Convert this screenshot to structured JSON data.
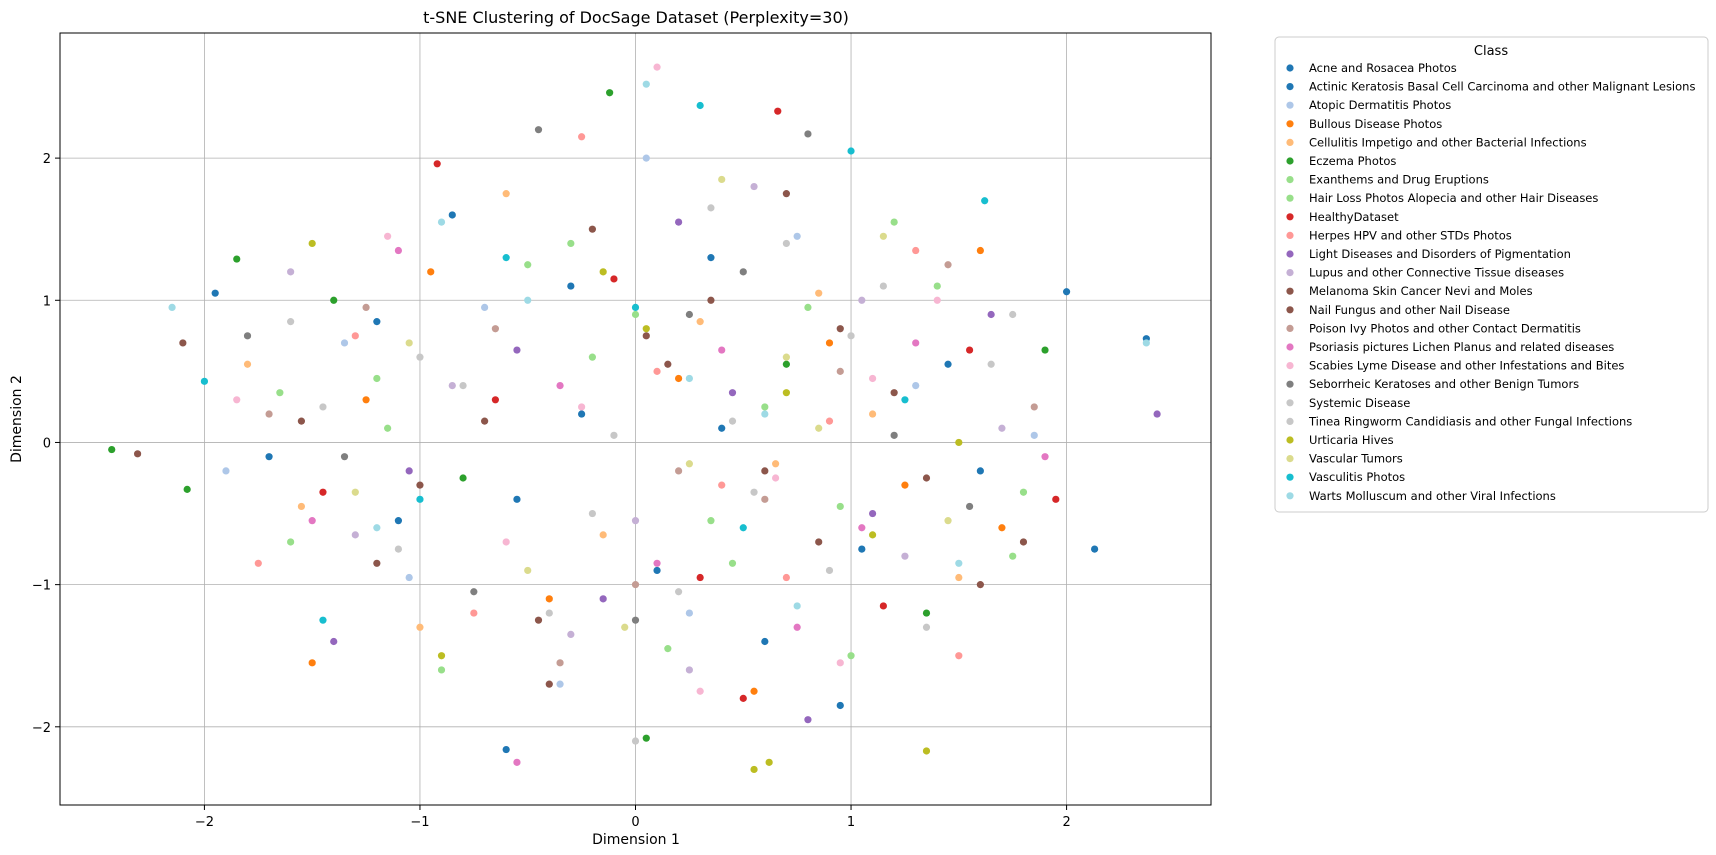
{
  "chart_data": {
    "type": "scatter",
    "title": "t-SNE Clustering of DocSage Dataset (Perplexity=30)",
    "xlabel": "Dimension 1",
    "ylabel": "Dimension 2",
    "xlim": [
      -2.67,
      2.67
    ],
    "ylim": [
      -2.55,
      2.88
    ],
    "xticks": [
      -2,
      -1,
      0,
      1,
      2
    ],
    "yticks": [
      -2,
      -1,
      0,
      1,
      2
    ],
    "grid": true,
    "legend": {
      "title": "Class",
      "placement": "outside-right-top"
    },
    "series": [
      {
        "name": "Acne and Rosacea Photos",
        "color": "#1f77b4",
        "x": [
          -1.2,
          -0.55,
          0.35,
          1.05,
          -0.25,
          0.6,
          1.45,
          -1.7,
          0.1,
          -0.85
        ],
        "y": [
          0.85,
          -0.4,
          1.3,
          -0.75,
          0.2,
          -1.4,
          0.55,
          -0.1,
          -0.9,
          1.6
        ]
      },
      {
        "name": "Actinic Keratosis Basal Cell Carcinoma and other Malignant Lesions",
        "color": "#1f77b4",
        "x": [
          2.0,
          2.37,
          2.13,
          -1.95,
          -0.6,
          0.95,
          -1.1,
          0.4,
          1.6,
          -0.3
        ],
        "y": [
          1.06,
          0.73,
          -0.75,
          1.05,
          -2.16,
          -1.85,
          -0.55,
          0.1,
          -0.2,
          1.1
        ]
      },
      {
        "name": "Atopic Dermatitis Photos",
        "color": "#aec7e8",
        "x": [
          -1.9,
          -0.7,
          0.25,
          1.3,
          -0.35,
          0.75,
          1.85,
          -1.35,
          0.05,
          -1.05
        ],
        "y": [
          -0.2,
          0.95,
          -1.2,
          0.4,
          -1.7,
          1.45,
          0.05,
          0.7,
          2.0,
          -0.95
        ]
      },
      {
        "name": "Bullous Disease Photos",
        "color": "#ff7f0e",
        "x": [
          1.6,
          -0.4,
          0.9,
          -1.5,
          0.2,
          1.25,
          -0.95,
          0.55,
          -1.25,
          1.7
        ],
        "y": [
          1.35,
          -1.1,
          0.7,
          -1.55,
          0.45,
          -0.3,
          1.2,
          -1.75,
          0.3,
          -0.6
        ]
      },
      {
        "name": "Cellulitis Impetigo and other Bacterial Infections",
        "color": "#ffbb78",
        "x": [
          -1.8,
          -0.15,
          0.85,
          1.5,
          -1.0,
          0.3,
          1.1,
          -0.6,
          -1.55,
          0.65
        ],
        "y": [
          0.55,
          -0.65,
          1.05,
          -0.95,
          -1.3,
          0.85,
          0.2,
          1.75,
          -0.45,
          -0.15
        ]
      },
      {
        "name": "Eczema Photos",
        "color": "#2ca02c",
        "x": [
          -2.43,
          -2.08,
          -1.85,
          -0.12,
          0.05,
          1.35,
          0.7,
          -0.8,
          1.9,
          -1.4
        ],
        "y": [
          -0.05,
          -0.33,
          1.29,
          2.46,
          -2.08,
          -1.2,
          0.55,
          -0.25,
          0.65,
          1.0
        ]
      },
      {
        "name": "Exanthems and Drug Eruptions",
        "color": "#98df8a",
        "x": [
          -1.15,
          0.45,
          1.2,
          -0.5,
          0.95,
          -1.65,
          0.15,
          1.75,
          -0.2,
          0.8
        ],
        "y": [
          0.1,
          -0.85,
          1.55,
          1.25,
          -0.45,
          0.35,
          -1.45,
          -0.8,
          0.6,
          0.95
        ]
      },
      {
        "name": "Hair Loss Photos Alopecia and other Hair Diseases",
        "color": "#98df8a",
        "x": [
          -0.9,
          0.6,
          1.4,
          -1.6,
          0.0,
          1.0,
          -0.3,
          1.8,
          -1.2,
          0.35
        ],
        "y": [
          -1.6,
          0.25,
          1.1,
          -0.7,
          0.9,
          -1.5,
          1.4,
          -0.35,
          0.45,
          -0.55
        ]
      },
      {
        "name": "HealthyDataset",
        "color": "#d62728",
        "x": [
          0.66,
          -0.92,
          0.3,
          1.55,
          -1.45,
          -0.1,
          1.15,
          -0.65,
          0.5,
          1.95
        ],
        "y": [
          2.33,
          1.96,
          -0.95,
          0.65,
          -0.35,
          1.15,
          -1.15,
          0.3,
          -1.8,
          -0.4
        ]
      },
      {
        "name": "Herpes HPV and other STDs Photos",
        "color": "#ff9896",
        "x": [
          1.5,
          -0.25,
          0.9,
          -1.3,
          0.4,
          1.3,
          -0.75,
          0.1,
          -1.75,
          0.7
        ],
        "y": [
          -1.5,
          2.15,
          0.15,
          0.75,
          -0.3,
          1.35,
          -1.2,
          0.5,
          -0.85,
          -0.95
        ]
      },
      {
        "name": "Light Diseases and Disorders of Pigmentation",
        "color": "#9467bd",
        "x": [
          2.42,
          -1.4,
          0.2,
          1.1,
          -0.55,
          0.8,
          -1.05,
          1.65,
          -0.15,
          0.45
        ],
        "y": [
          0.2,
          -1.4,
          1.55,
          -0.5,
          0.65,
          -1.95,
          -0.2,
          0.9,
          -1.1,
          0.35
        ]
      },
      {
        "name": "Lupus and other Connective Tissue diseases",
        "color": "#c5b0d5",
        "x": [
          -1.6,
          0.0,
          1.25,
          -0.85,
          0.55,
          1.7,
          -0.3,
          1.05,
          -1.3,
          0.25
        ],
        "y": [
          1.2,
          -0.55,
          -0.8,
          0.4,
          1.8,
          0.1,
          -1.35,
          1.0,
          -0.65,
          -1.6
        ]
      },
      {
        "name": "Melanoma Skin Cancer Nevi and Moles",
        "color": "#8c564b",
        "x": [
          -2.31,
          -2.1,
          0.7,
          -1.2,
          0.15,
          1.35,
          -0.4,
          0.95,
          -0.7,
          1.8
        ],
        "y": [
          -0.08,
          0.7,
          1.75,
          -0.85,
          0.55,
          -0.25,
          -1.7,
          0.8,
          0.15,
          -0.7
        ]
      },
      {
        "name": "Nail Fungus and other Nail Disease",
        "color": "#8c564b",
        "x": [
          -1.0,
          0.35,
          1.2,
          -0.45,
          0.85,
          -1.55,
          0.05,
          1.6,
          -0.2,
          0.6
        ],
        "y": [
          -0.3,
          1.0,
          0.35,
          -1.25,
          -0.7,
          0.15,
          0.75,
          -1.0,
          1.5,
          -0.2
        ]
      },
      {
        "name": "Poison Ivy Photos and other Contact Dermatitis",
        "color": "#c49c94",
        "x": [
          -0.35,
          0.95,
          -1.25,
          0.2,
          1.45,
          -0.65,
          0.6,
          1.85,
          -1.7,
          0.0
        ],
        "y": [
          -1.55,
          0.5,
          0.95,
          -0.2,
          1.25,
          0.8,
          -0.4,
          0.25,
          0.2,
          -1.0
        ]
      },
      {
        "name": "Psoriasis pictures Lichen Planus and related diseases",
        "color": "#e377c2",
        "x": [
          -0.55,
          0.4,
          1.05,
          -1.1,
          0.1,
          1.3,
          -0.35,
          0.75,
          -1.5,
          1.9
        ],
        "y": [
          -2.25,
          0.65,
          -0.6,
          1.35,
          -0.85,
          0.7,
          0.4,
          -1.3,
          -0.55,
          -0.1
        ]
      },
      {
        "name": "Scabies Lyme Disease and other Infestations and Bites",
        "color": "#f7b6d2",
        "x": [
          0.1,
          -1.85,
          0.65,
          1.4,
          -0.6,
          0.3,
          1.1,
          -1.15,
          0.95,
          -0.25
        ],
        "y": [
          2.64,
          0.3,
          -0.25,
          1.0,
          -0.7,
          -1.75,
          0.45,
          1.45,
          -1.55,
          0.25
        ]
      },
      {
        "name": "Seborrheic Keratoses and other Benign Tumors",
        "color": "#7f7f7f",
        "x": [
          -0.45,
          0.8,
          -1.35,
          0.25,
          1.55,
          -0.75,
          0.5,
          1.2,
          -1.8,
          0.0
        ],
        "y": [
          2.2,
          2.17,
          -0.1,
          0.9,
          -0.45,
          -1.05,
          1.2,
          0.05,
          0.75,
          -1.25
        ]
      },
      {
        "name": "Systemic Disease",
        "color": "#c7c7c7",
        "x": [
          -0.1,
          0.55,
          -1.0,
          1.15,
          -0.4,
          0.9,
          -1.45,
          0.35,
          1.65,
          0.0
        ],
        "y": [
          0.05,
          -0.35,
          0.6,
          1.1,
          -1.2,
          -0.9,
          0.25,
          1.65,
          0.55,
          -2.1
        ]
      },
      {
        "name": "Tinea Ringworm Candidiasis and other Fungal Infections",
        "color": "#c7c7c7",
        "x": [
          -0.8,
          0.2,
          1.35,
          -1.6,
          0.7,
          -0.2,
          1.0,
          -1.1,
          0.45,
          1.75
        ],
        "y": [
          0.4,
          -1.05,
          -1.3,
          0.85,
          1.4,
          -0.5,
          0.75,
          -0.75,
          0.15,
          0.9
        ]
      },
      {
        "name": "Urticaria Hives",
        "color": "#bcbd22",
        "x": [
          0.55,
          0.62,
          1.35,
          -1.5,
          0.05,
          1.1,
          -0.9,
          0.7,
          -0.15,
          1.5
        ],
        "y": [
          -2.3,
          -2.25,
          -2.17,
          1.4,
          0.8,
          -0.65,
          -1.5,
          0.35,
          1.2,
          0.0
        ]
      },
      {
        "name": "Vascular Tumors",
        "color": "#dbdb8d",
        "x": [
          -1.05,
          0.25,
          1.15,
          -0.5,
          0.85,
          -1.3,
          0.4,
          1.45,
          -0.05,
          0.7
        ],
        "y": [
          0.7,
          -0.15,
          1.45,
          -0.9,
          0.1,
          -0.35,
          1.85,
          -0.55,
          -1.3,
          0.6
        ]
      },
      {
        "name": "Vasculitis Photos",
        "color": "#17becf",
        "x": [
          -2.0,
          1.0,
          1.62,
          -1.45,
          0.0,
          0.5,
          -0.6,
          1.25,
          0.3,
          -1.0
        ],
        "y": [
          0.43,
          2.05,
          1.7,
          -1.25,
          0.95,
          -0.6,
          1.3,
          0.3,
          2.37,
          -0.4
        ]
      },
      {
        "name": "Warts Molluscum and other Viral Infections",
        "color": "#9edae5",
        "x": [
          -2.15,
          0.05,
          2.37,
          0.75,
          -1.2,
          0.25,
          -0.5,
          1.5,
          -0.9,
          0.6
        ],
        "y": [
          0.95,
          2.52,
          0.7,
          -1.15,
          -0.6,
          0.45,
          1.0,
          -0.85,
          1.55,
          0.2
        ]
      }
    ]
  }
}
